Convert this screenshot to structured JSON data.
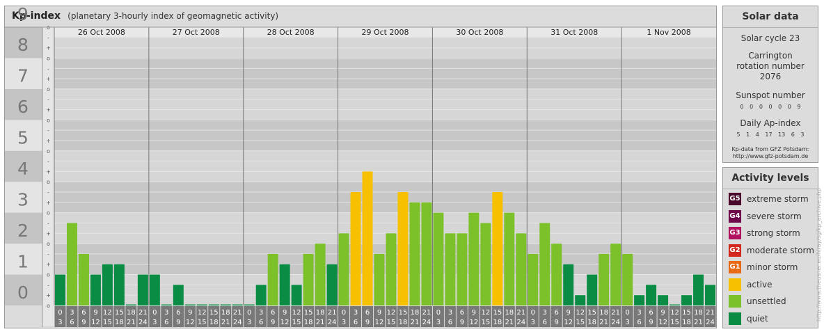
{
  "header": {
    "title": "Kp-index",
    "subtitle": "(planetary 3-hourly index of geomagnetic activity)"
  },
  "chart_data": {
    "type": "bar",
    "ylim": [
      0,
      9
    ],
    "ytick_labels": [
      "0",
      "1",
      "2",
      "3",
      "4",
      "5",
      "6",
      "7",
      "8",
      "9"
    ],
    "minor_tick_labels": [
      "o",
      "+",
      "-"
    ],
    "days": [
      "26 Oct 2008",
      "27 Oct 2008",
      "28 Oct 2008",
      "29 Oct 2008",
      "30 Oct 2008",
      "31 Oct 2008",
      "1 Nov 2008"
    ],
    "hour_labels_top": [
      "0",
      "3",
      "6",
      "9",
      "12",
      "15",
      "18",
      "21"
    ],
    "hour_labels_bottom": [
      "3",
      "6",
      "9",
      "12",
      "15",
      "18",
      "21",
      "24"
    ],
    "values": [
      [
        1.0,
        2.667,
        1.667,
        1.0,
        1.333,
        1.333,
        0.0,
        1.0
      ],
      [
        1.0,
        0.0,
        0.667,
        0.0,
        0.0,
        0.0,
        0.0,
        0.0
      ],
      [
        0.0,
        0.667,
        1.667,
        1.333,
        0.667,
        1.667,
        2.0,
        1.333
      ],
      [
        2.333,
        3.667,
        4.333,
        1.667,
        2.333,
        3.667,
        3.333,
        3.333
      ],
      [
        3.0,
        2.333,
        2.333,
        3.0,
        2.667,
        3.667,
        3.0,
        2.333
      ],
      [
        1.667,
        2.667,
        2.0,
        1.333,
        0.333,
        1.0,
        1.667,
        2.0
      ],
      [
        1.667,
        0.333,
        0.667,
        0.333,
        0.0,
        0.333,
        1.0,
        0.667
      ]
    ],
    "colors": {
      "quiet": "#0a8c45",
      "unsettled": "#7cc12a",
      "active": "#f7c000"
    }
  },
  "solar_data": {
    "title": "Solar data",
    "cycle": "Solar cycle 23",
    "carrington": "Carrington rotation number 2076",
    "sunspot_label": "Sunspot number",
    "sunspot_values": "0 0 0 0 0 0 9",
    "ap_label": "Daily Ap-index",
    "ap_values": "5 1 4 17 13 6 3",
    "credit_line1": "Kp-data from GFZ Potsdam:",
    "credit_line2": "http://www.gfz-potsdam.de"
  },
  "activity_levels": {
    "title": "Activity levels",
    "items": [
      {
        "code": "G5",
        "label": "extreme storm",
        "color": "#4a0a2a"
      },
      {
        "code": "G4",
        "label": "severe storm",
        "color": "#6e0a4a"
      },
      {
        "code": "G3",
        "label": "strong storm",
        "color": "#b0105e"
      },
      {
        "code": "G2",
        "label": "moderate storm",
        "color": "#d2281e"
      },
      {
        "code": "G1",
        "label": "minor storm",
        "color": "#e86a14"
      },
      {
        "code": "",
        "label": "active",
        "color": "#f7c000"
      },
      {
        "code": "",
        "label": "unsettled",
        "color": "#7cc12a"
      },
      {
        "code": "",
        "label": "quiet",
        "color": "#0a8c45"
      }
    ]
  },
  "watermark": "http://www.theusner.eu/hiray/sg/kp_archive.php"
}
